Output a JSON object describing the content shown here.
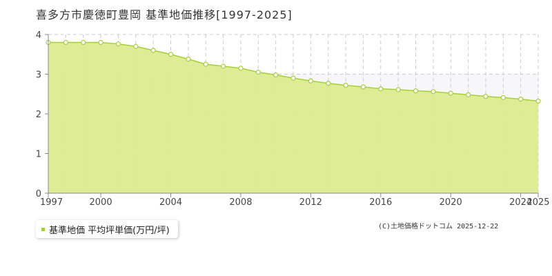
{
  "title": "喜多方市慶徳町豊岡 基準地価推移[1997-2025]",
  "legend": {
    "label": "基準地価 平均坪単価(万円/坪)"
  },
  "copyright": "(C)土地価格ドットコム 2025-12-22",
  "colors": {
    "fill": "#dbeb8f",
    "line": "#a5cf3a",
    "marker_fill": "#ffffff",
    "grid": "#cccccc",
    "axis": "#888888",
    "band": "#f7f6fb"
  },
  "chart_data": {
    "type": "area",
    "title": "喜多方市慶徳町豊岡 基準地価推移[1997-2025]",
    "xlabel": "",
    "ylabel": "",
    "x": [
      1997,
      1998,
      1999,
      2000,
      2001,
      2002,
      2003,
      2004,
      2005,
      2006,
      2007,
      2008,
      2009,
      2010,
      2011,
      2012,
      2013,
      2014,
      2015,
      2016,
      2017,
      2018,
      2019,
      2020,
      2021,
      2022,
      2023,
      2024,
      2025
    ],
    "series": [
      {
        "name": "基準地価 平均坪単価(万円/坪)",
        "values": [
          3.8,
          3.8,
          3.8,
          3.8,
          3.76,
          3.7,
          3.6,
          3.5,
          3.38,
          3.25,
          3.2,
          3.15,
          3.05,
          2.98,
          2.9,
          2.83,
          2.77,
          2.72,
          2.68,
          2.63,
          2.61,
          2.58,
          2.56,
          2.52,
          2.48,
          2.44,
          2.41,
          2.37,
          2.32
        ]
      }
    ],
    "xlim": [
      1997,
      2025
    ],
    "ylim": [
      0,
      4
    ],
    "x_ticks": [
      "1997",
      "2000",
      "2004",
      "2008",
      "2012",
      "2016",
      "2020",
      "2024",
      "2025"
    ],
    "y_ticks": [
      "0",
      "1",
      "2",
      "3",
      "4"
    ],
    "grid": true,
    "legend_position": "bottom-left"
  }
}
